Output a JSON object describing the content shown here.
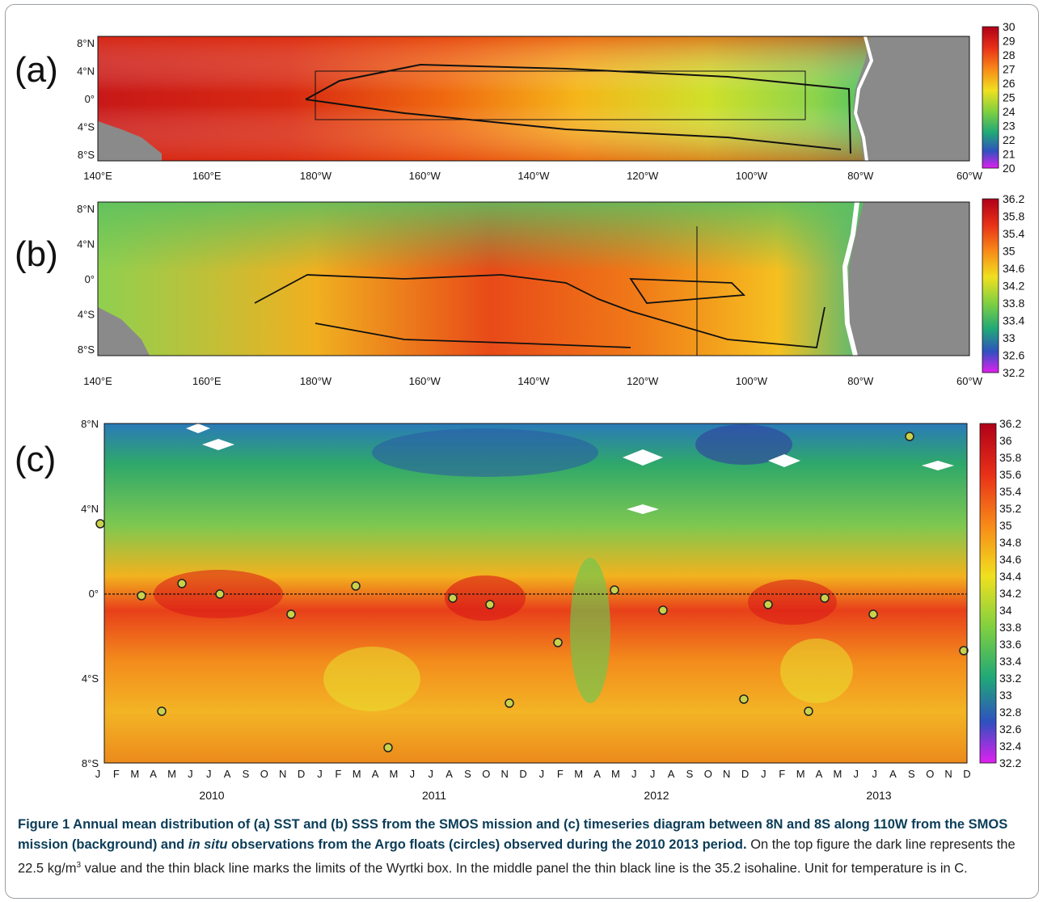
{
  "panels": {
    "a": {
      "letter": "(a)"
    },
    "b": {
      "letter": "(b)"
    },
    "c": {
      "letter": "(c)"
    }
  },
  "map_axes": {
    "lat_labels": [
      "8°N",
      "4°N",
      "0°",
      "4°S",
      "8°S"
    ],
    "lon_labels": [
      "140°E",
      "160°E",
      "180°W",
      "160°W",
      "140°W",
      "120°W",
      "100°W",
      "80°W",
      "60°W"
    ]
  },
  "colorbar_a": [
    "30",
    "29",
    "28",
    "27",
    "26",
    "25",
    "24",
    "23",
    "22",
    "21",
    "20"
  ],
  "colorbar_b": [
    "36.2",
    "35.8",
    "35.4",
    "35",
    "34.6",
    "34.2",
    "33.8",
    "33.4",
    "33",
    "32.6",
    "32.2"
  ],
  "colorbar_c": [
    "36.2",
    "36",
    "35.8",
    "35.6",
    "35.4",
    "35.2",
    "35",
    "34.8",
    "34.6",
    "34.4",
    "34.2",
    "34",
    "33.8",
    "33.6",
    "33.4",
    "33.2",
    "33",
    "32.8",
    "32.6",
    "32.4",
    "32.2"
  ],
  "timeseries_axes": {
    "lat_labels": [
      "8°N",
      "4°N",
      "0°",
      "4°S",
      "8°S"
    ],
    "months": [
      "J",
      "F",
      "M",
      "A",
      "M",
      "J",
      "J",
      "A",
      "S",
      "O",
      "N",
      "D",
      "J",
      "F",
      "M",
      "A",
      "M",
      "J",
      "J",
      "A",
      "S",
      "O",
      "N",
      "D",
      "J",
      "F",
      "M",
      "A",
      "M",
      "J",
      "J",
      "A",
      "S",
      "O",
      "N",
      "D",
      "J",
      "F",
      "M",
      "A",
      "M",
      "J",
      "J",
      "A",
      "S",
      "O",
      "N",
      "D"
    ],
    "years": [
      "2010",
      "2011",
      "2012",
      "2013"
    ]
  },
  "caption": {
    "bold": "Figure 1 Annual mean distribution of (a) SST and (b) SSS from the SMOS mission and (c) timeseries diagram between 8N and 8S along 110W from the SMOS mission (background) and  in situ observations from the Argo floats (circles) observed during the 2010  2013 period.",
    "bold_pre": "Figure 1 Annual mean distribution of (a) SST and (b) SSS from the SMOS mission and (c) timeseries diagram between 8N and 8S along 110W from the SMOS mission (background) and ",
    "bold_italic": "in situ",
    "bold_post": " observations from the Argo floats (circles) observed during the 2010  2013 period.",
    "text_1": " On the top figure the dark line represents the 22.5 kg/m",
    "sup": "3",
    "text_2": " value and the thin black line marks the limits of the Wyrtki box. In the middle panel the thin black line is the 35.2 isohaline. Unit for temperature is in C."
  }
}
